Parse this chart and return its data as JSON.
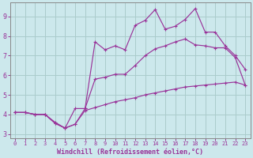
{
  "xlabel": "Windchill (Refroidissement éolien,°C)",
  "background_color": "#cce8ec",
  "grid_color": "#aacccc",
  "line_color": "#993399",
  "xlim": [
    -0.5,
    23.5
  ],
  "ylim": [
    2.8,
    9.7
  ],
  "xticks": [
    0,
    1,
    2,
    3,
    4,
    5,
    6,
    7,
    8,
    9,
    10,
    11,
    12,
    13,
    14,
    15,
    16,
    17,
    18,
    19,
    20,
    21,
    22,
    23
  ],
  "yticks": [
    3,
    4,
    5,
    6,
    7,
    8,
    9
  ],
  "x_vals": [
    0,
    1,
    2,
    3,
    4,
    5,
    6,
    7,
    8,
    9,
    10,
    11,
    12,
    13,
    14,
    15,
    16,
    17,
    18,
    19,
    20,
    21,
    22,
    23
  ],
  "line1_y": [
    4.1,
    4.1,
    4.0,
    4.0,
    3.6,
    3.3,
    4.3,
    4.3,
    7.7,
    7.3,
    7.5,
    7.3,
    8.55,
    8.8,
    9.35,
    8.35,
    8.5,
    8.85,
    9.4,
    8.2,
    8.2,
    7.5,
    7.0,
    6.3
  ],
  "line2_y": [
    4.1,
    4.1,
    4.0,
    4.0,
    3.55,
    3.3,
    3.5,
    4.3,
    5.8,
    5.9,
    6.05,
    6.05,
    6.5,
    7.0,
    7.35,
    7.5,
    7.7,
    7.85,
    7.55,
    7.5,
    7.4,
    7.4,
    6.9,
    5.5
  ],
  "line3_y": [
    4.1,
    4.1,
    4.0,
    4.0,
    3.55,
    3.3,
    3.5,
    4.2,
    4.35,
    4.5,
    4.65,
    4.75,
    4.85,
    5.0,
    5.1,
    5.2,
    5.3,
    5.4,
    5.45,
    5.5,
    5.55,
    5.6,
    5.65,
    5.5
  ]
}
